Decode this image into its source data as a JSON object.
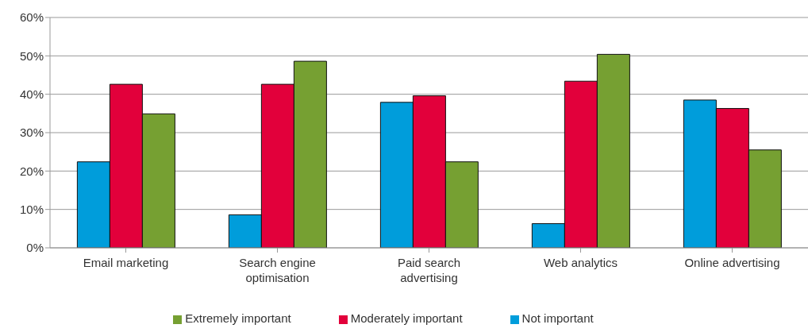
{
  "chart_data": {
    "type": "bar",
    "categories": [
      "Email marketing",
      "Search engine optimisation",
      "Paid search advertising",
      "Web analytics",
      "Online advertising"
    ],
    "series": [
      {
        "name": "Not important",
        "color": "#009ddb",
        "values": [
          22.4,
          8.6,
          37.9,
          6.3,
          38.5
        ]
      },
      {
        "name": "Moderately important",
        "color": "#e2003b",
        "values": [
          42.6,
          42.6,
          39.6,
          43.4,
          36.3
        ]
      },
      {
        "name": "Extremely important",
        "color": "#76a032",
        "values": [
          34.9,
          48.6,
          22.4,
          50.4,
          25.5
        ]
      }
    ],
    "ylim": [
      0,
      60
    ],
    "yticks": [
      {
        "value": 0,
        "label": "0%"
      },
      {
        "value": 10,
        "label": "10%"
      },
      {
        "value": 20,
        "label": "20%"
      },
      {
        "value": 30,
        "label": "30%"
      },
      {
        "value": 40,
        "label": "40%"
      },
      {
        "value": 50,
        "label": "50%"
      },
      {
        "value": 60,
        "label": "60%"
      }
    ],
    "grid": "y",
    "legend": "bottom"
  }
}
